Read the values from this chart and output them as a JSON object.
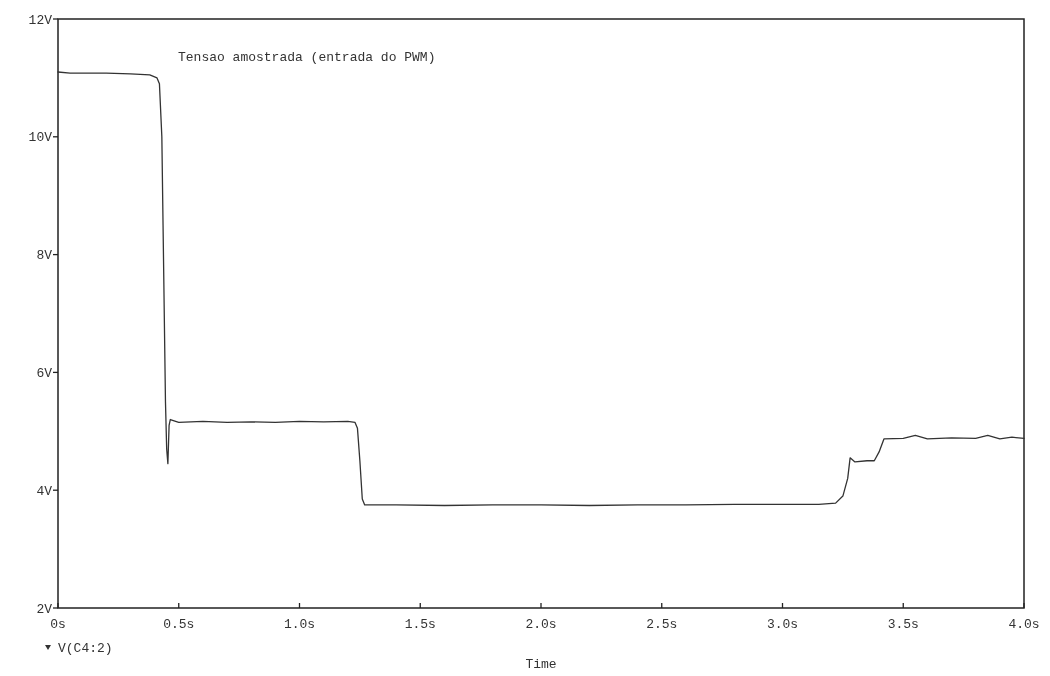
{
  "chart_data": {
    "type": "line",
    "xlabel": "Time",
    "annotations": [
      "Tensao amostrada (entrada do PWM)"
    ],
    "xlim": [
      0,
      4
    ],
    "xticks": [
      {
        "value": 0,
        "label": "0s"
      },
      {
        "value": 0.5,
        "label": "0.5s"
      },
      {
        "value": 1,
        "label": "1.0s"
      },
      {
        "value": 1.5,
        "label": "1.5s"
      },
      {
        "value": 2,
        "label": "2.0s"
      },
      {
        "value": 2.5,
        "label": "2.5s"
      },
      {
        "value": 3,
        "label": "3.0s"
      },
      {
        "value": 3.5,
        "label": "3.5s"
      },
      {
        "value": 4,
        "label": "4.0s"
      }
    ],
    "ylim": [
      2,
      12
    ],
    "yticks": [
      {
        "value": 2,
        "label": "2V"
      },
      {
        "value": 4,
        "label": "4V"
      },
      {
        "value": 6,
        "label": "6V"
      },
      {
        "value": 8,
        "label": "8V"
      },
      {
        "value": 10,
        "label": "10V"
      },
      {
        "value": 12,
        "label": "12V"
      }
    ],
    "grid": false,
    "legend": "bottom left",
    "marker": "none",
    "line_style": "solid",
    "series": [
      {
        "name": "V(C4:2)",
        "color": "#333333",
        "x": [
          0,
          0.05,
          0.2,
          0.3,
          0.38,
          0.41,
          0.42,
          0.43,
          0.435,
          0.44,
          0.445,
          0.45,
          0.455,
          0.46,
          0.465,
          0.5,
          0.6,
          0.7,
          0.8,
          0.9,
          1.0,
          1.1,
          1.2,
          1.23,
          1.24,
          1.25,
          1.26,
          1.27,
          1.4,
          1.6,
          1.8,
          2.0,
          2.2,
          2.4,
          2.6,
          2.8,
          3.0,
          3.15,
          3.22,
          3.25,
          3.27,
          3.28,
          3.3,
          3.35,
          3.38,
          3.4,
          3.42,
          3.5,
          3.55,
          3.6,
          3.7,
          3.8,
          3.85,
          3.9,
          3.95,
          4.0
        ],
        "values": [
          11.1,
          11.08,
          11.08,
          11.07,
          11.05,
          11.0,
          10.9,
          10.0,
          8.5,
          7.0,
          5.5,
          4.7,
          4.45,
          5.1,
          5.2,
          5.15,
          5.17,
          5.15,
          5.16,
          5.15,
          5.17,
          5.16,
          5.17,
          5.15,
          5.05,
          4.5,
          3.85,
          3.75,
          3.75,
          3.74,
          3.75,
          3.75,
          3.74,
          3.75,
          3.75,
          3.76,
          3.76,
          3.76,
          3.78,
          3.9,
          4.2,
          4.55,
          4.48,
          4.5,
          4.5,
          4.65,
          4.87,
          4.88,
          4.93,
          4.87,
          4.89,
          4.88,
          4.93,
          4.87,
          4.9,
          4.88
        ]
      }
    ]
  }
}
